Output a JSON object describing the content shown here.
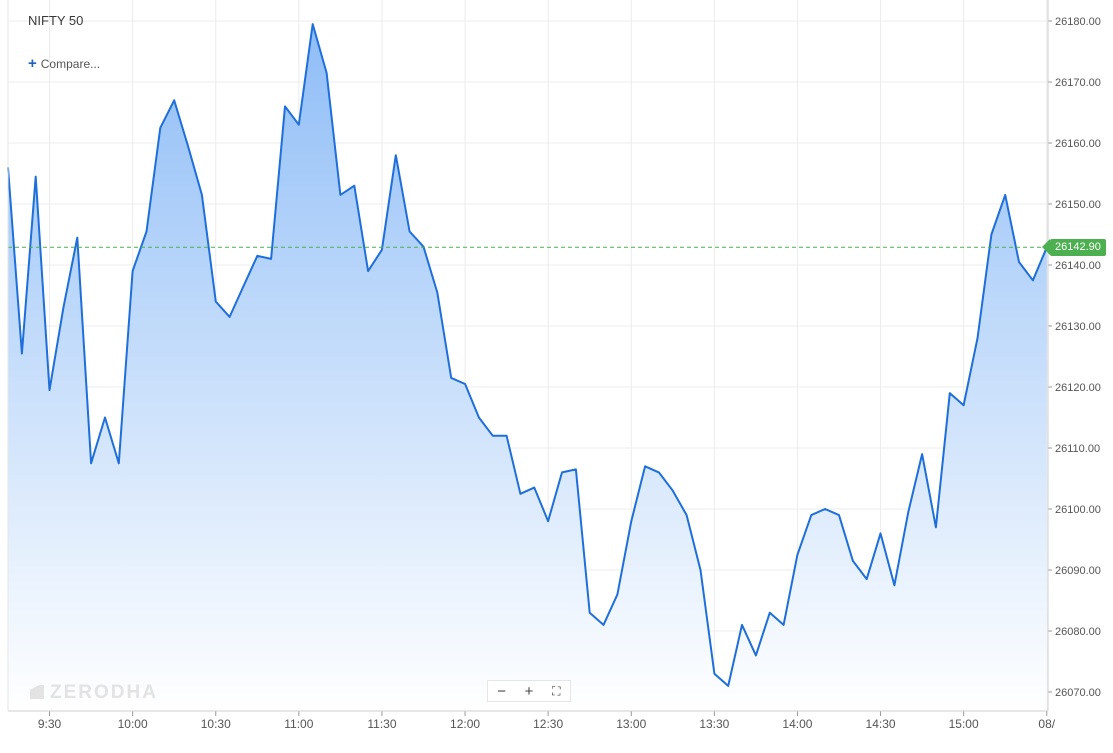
{
  "header": {
    "symbol": "NIFTY 50",
    "compare_label": "Compare..."
  },
  "controls": {
    "zoom_out": "−",
    "zoom_in": "+",
    "fullscreen": "⛶"
  },
  "watermark": "ZERODHA",
  "last_price": {
    "label": "26142.90",
    "color": "#4caf50"
  },
  "colors": {
    "line": "#1e6fd9",
    "fill_top": "#8fbdf7",
    "fill_bottom": "#ffffff",
    "grid": "#ececec",
    "last_price_line": "#4caf50"
  },
  "chart_data": {
    "type": "area",
    "title": "NIFTY 50",
    "xlabel": "",
    "ylabel": "",
    "x_ticks": [
      "9:30",
      "10:00",
      "10:30",
      "11:00",
      "11:30",
      "12:00",
      "12:30",
      "13:00",
      "13:30",
      "14:00",
      "14:30",
      "15:00",
      "08/"
    ],
    "y_ticks": [
      "26070.00",
      "26080.00",
      "26090.00",
      "26100.00",
      "26110.00",
      "26120.00",
      "26130.00",
      "26140.00",
      "26150.00",
      "26160.00",
      "26170.00",
      "26180.00"
    ],
    "ylim": [
      26068,
      26183
    ],
    "x_start": "9:15",
    "interval_minutes": 5,
    "grid": true,
    "last_price": 26142.9,
    "series": [
      {
        "values": [
          26156,
          26125.5,
          26154.5,
          26119.5,
          26133,
          26144.5,
          26107.5,
          26115,
          26107.5,
          26139,
          26145.5,
          26162.5,
          26167,
          26159.5,
          26151.5,
          26134,
          26131.5,
          26136.5,
          26141.5,
          26141,
          26166,
          26163,
          26179.5,
          26171.5,
          26151.5,
          26153,
          26139,
          26142.5,
          26158,
          26145.5,
          26143,
          26135.5,
          26121.5,
          26120.5,
          26115,
          26112,
          26112,
          26102.5,
          26103.5,
          26098,
          26106,
          26106.5,
          26083,
          26081,
          26086,
          26098,
          26107,
          26106,
          26103,
          26099,
          26090,
          26073,
          26071,
          26081,
          26076,
          26083,
          26081,
          26092.5,
          26099,
          26100,
          26099,
          26091.5,
          26088.5,
          26096,
          26087.5,
          26099.5,
          26109,
          26097,
          26119,
          26117,
          26128,
          26145,
          26151.5,
          26140.5,
          26137.5,
          26142.9
        ]
      }
    ]
  }
}
